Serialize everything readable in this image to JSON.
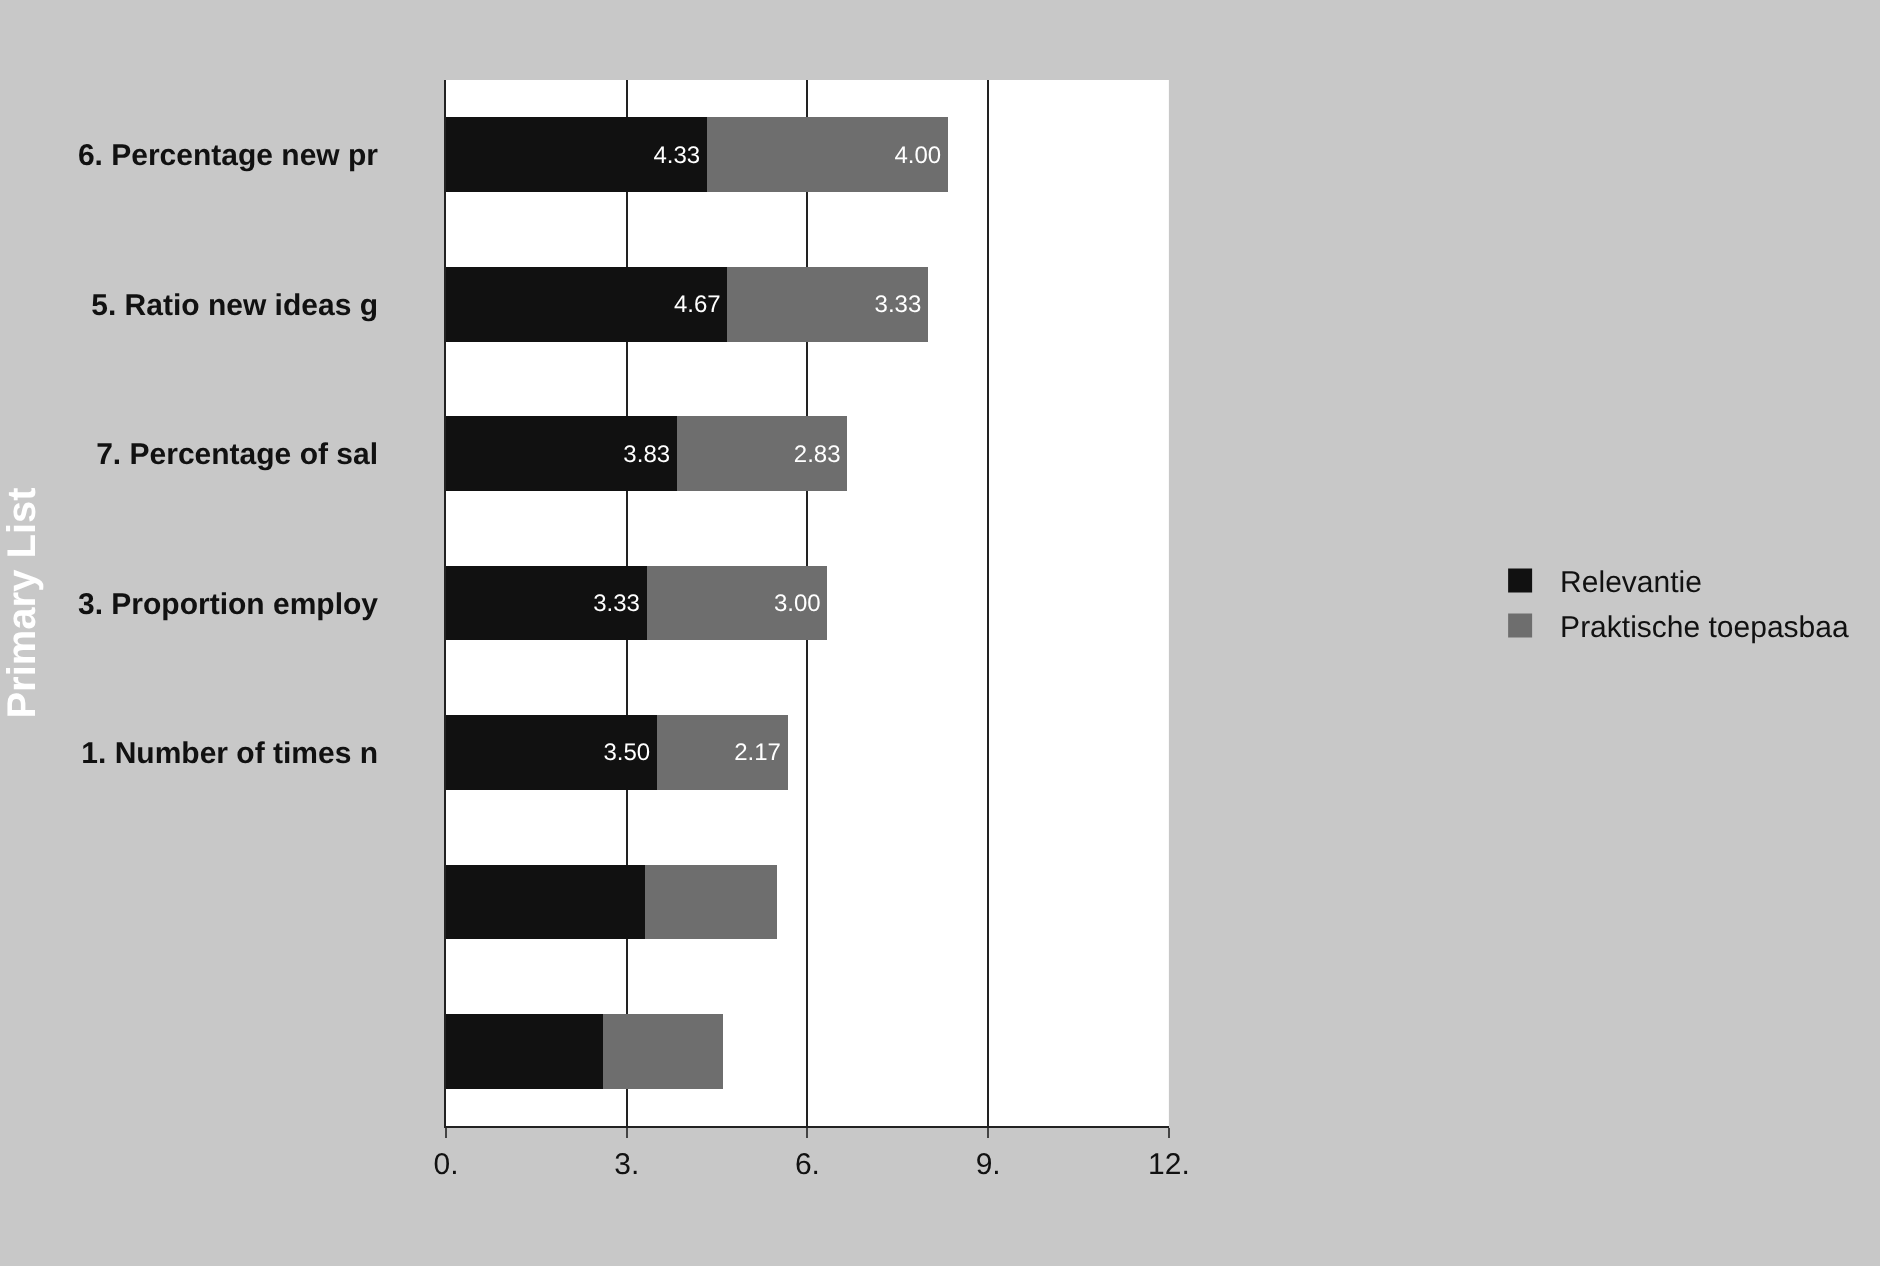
{
  "chart_data": {
    "type": "bar",
    "orientation": "horizontal",
    "stacked": true,
    "ylabel": "Primary List",
    "categories": [
      "6. Percentage new pr",
      "5. Ratio new ideas g",
      "7. Percentage of sal",
      "3. Proportion employ",
      "1. Number of times n",
      null,
      null
    ],
    "series": [
      {
        "name": "Relevantie",
        "color": "#111111",
        "values": [
          4.33,
          4.67,
          3.83,
          3.33,
          3.5,
          3.3,
          2.6
        ],
        "value_labels": [
          "4.33",
          "4.67",
          "3.83",
          "3.33",
          "3.50",
          null,
          null
        ]
      },
      {
        "name": "Praktische toepasbaa",
        "color": "#6e6e6e",
        "values": [
          4.0,
          3.33,
          2.83,
          3.0,
          2.17,
          2.2,
          2.0
        ],
        "value_labels": [
          "4.00",
          "3.33",
          "2.83",
          "3.00",
          "2.17",
          null,
          null
        ]
      }
    ],
    "xlim": [
      0,
      12
    ],
    "xticks": [
      {
        "value": 0,
        "label": "0."
      },
      {
        "value": 3,
        "label": "3."
      },
      {
        "value": 6,
        "label": "6."
      },
      {
        "value": 9,
        "label": "9."
      },
      {
        "value": 12,
        "label": "12."
      }
    ],
    "grid": "x",
    "legend": "right"
  }
}
